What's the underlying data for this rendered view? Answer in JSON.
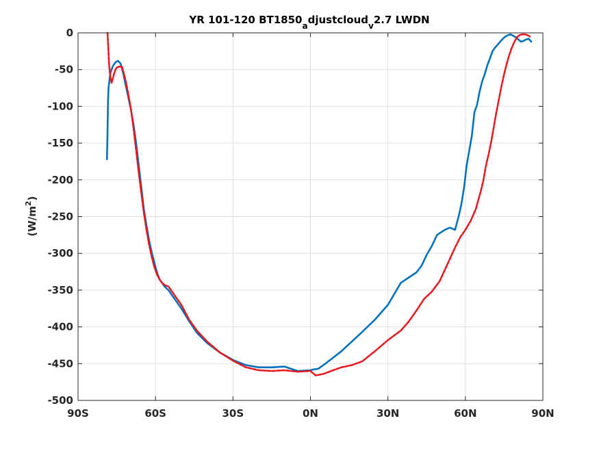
{
  "chart_data": {
    "type": "line",
    "title_parts": {
      "prefix": "YR 101-120 BT1850",
      "sub_a": "a",
      "mid": "djustcloud",
      "sub_v": "v",
      "suffix": "2.7 LWDN"
    },
    "ylabel_parts": {
      "main": "(W/m",
      "sup": "2",
      "close": ")"
    },
    "xlabel": "",
    "xlim": [
      -90,
      90
    ],
    "ylim": [
      -500,
      0
    ],
    "x_ticks": [
      {
        "value": -90,
        "label": "90S"
      },
      {
        "value": -60,
        "label": "60S"
      },
      {
        "value": -30,
        "label": "30S"
      },
      {
        "value": 0,
        "label": "0N"
      },
      {
        "value": 30,
        "label": "30N"
      },
      {
        "value": 60,
        "label": "60N"
      },
      {
        "value": 90,
        "label": "90N"
      }
    ],
    "y_ticks": [
      {
        "value": 0,
        "label": "0"
      },
      {
        "value": -50,
        "label": "-50"
      },
      {
        "value": -100,
        "label": "-100"
      },
      {
        "value": -150,
        "label": "-150"
      },
      {
        "value": -200,
        "label": "-200"
      },
      {
        "value": -250,
        "label": "-250"
      },
      {
        "value": -300,
        "label": "-300"
      },
      {
        "value": -350,
        "label": "-350"
      },
      {
        "value": -400,
        "label": "-400"
      },
      {
        "value": -450,
        "label": "-450"
      },
      {
        "value": -500,
        "label": "-500"
      }
    ],
    "grid": true,
    "series": [
      {
        "color": "#0072BD",
        "style": "solid",
        "x": [
          -78.8,
          -78.6,
          -78.4,
          -78.2,
          -77.5,
          -76.5,
          -75.5,
          -74.5,
          -73.5,
          -72.5,
          -71.5,
          -70.5,
          -69.5,
          -68.5,
          -67.5,
          -66.5,
          -65.5,
          -64.5,
          -63.5,
          -62.5,
          -61.5,
          -60.5,
          -59.5,
          -58.5,
          -57.5,
          -56.5,
          -55,
          -53,
          -50,
          -47,
          -44,
          -40,
          -35,
          -30,
          -25,
          -20,
          -15,
          -10,
          -5,
          0,
          1,
          3,
          5,
          8,
          12,
          16,
          20,
          25,
          30,
          35,
          38,
          41,
          43,
          45,
          47,
          49,
          52,
          54,
          56,
          57.5,
          58.5,
          59.5,
          60.5,
          61.5,
          62.5,
          63.5,
          64.5,
          65.5,
          66.5,
          67.5,
          68.5,
          69.5,
          70.5,
          71.5,
          72.5,
          73.5,
          74.5,
          75.5,
          76.5,
          77.5,
          78.5,
          79.5,
          80.5,
          81.5,
          82.5,
          83.5,
          84.5,
          85.5
        ],
        "values": [
          -172,
          -140,
          -95,
          -75,
          -55,
          -45,
          -40,
          -38,
          -42,
          -55,
          -72,
          -88,
          -105,
          -125,
          -150,
          -180,
          -210,
          -240,
          -262,
          -282,
          -298,
          -312,
          -325,
          -335,
          -340,
          -345,
          -350,
          -360,
          -375,
          -392,
          -408,
          -422,
          -435,
          -445,
          -452,
          -455,
          -455,
          -454,
          -460,
          -459,
          -458,
          -457,
          -452,
          -444,
          -433,
          -420,
          -407,
          -390,
          -370,
          -340,
          -333,
          -326,
          -317,
          -302,
          -290,
          -275,
          -268,
          -265,
          -268,
          -248,
          -232,
          -210,
          -180,
          -160,
          -140,
          -108,
          -98,
          -80,
          -66,
          -56,
          -44,
          -35,
          -25,
          -20,
          -16,
          -12,
          -8,
          -5,
          -3,
          -2,
          -4,
          -6,
          -9,
          -12,
          -11,
          -9,
          -8,
          -12
        ],
        "name": ""
      },
      {
        "color": "#E8181E",
        "style": "dashed",
        "x": [
          -78.6,
          -78.3,
          -78,
          -77.5,
          -77,
          -76.5,
          -76,
          -75.5,
          -75,
          -74,
          -73,
          -72.5,
          -71.5,
          -70.5,
          -69.5,
          -68.5,
          -67.5,
          -66.5,
          -65.5,
          -64.5,
          -63.5,
          -62.5,
          -61.5,
          -60.5,
          -59.5,
          -58.5,
          -57.5,
          -56.5,
          -55,
          -53,
          -50,
          -47,
          -44,
          -40,
          -35,
          -30,
          -25,
          -20,
          -15,
          -10,
          -5,
          0,
          2,
          5,
          8,
          12,
          16,
          20,
          25,
          30,
          35,
          38,
          41,
          44,
          47,
          50,
          53,
          56,
          58,
          60,
          62,
          64,
          66,
          67,
          68,
          69,
          70,
          71,
          72,
          73,
          74,
          75,
          76,
          77,
          78,
          79,
          80,
          81,
          82,
          83,
          84,
          85
        ],
        "values": [
          0,
          -20,
          -42,
          -60,
          -68,
          -62,
          -55,
          -50,
          -47,
          -46,
          -46,
          -52,
          -66,
          -84,
          -104,
          -130,
          -160,
          -190,
          -218,
          -245,
          -268,
          -288,
          -304,
          -318,
          -328,
          -335,
          -340,
          -343,
          -345,
          -355,
          -370,
          -390,
          -405,
          -420,
          -435,
          -446,
          -455,
          -459,
          -460,
          -459,
          -461,
          -460,
          -466,
          -464,
          -460,
          -455,
          -452,
          -447,
          -433,
          -418,
          -405,
          -393,
          -378,
          -362,
          -352,
          -338,
          -315,
          -292,
          -278,
          -268,
          -256,
          -240,
          -215,
          -200,
          -180,
          -165,
          -148,
          -128,
          -108,
          -90,
          -72,
          -56,
          -42,
          -30,
          -20,
          -12,
          -6,
          -3,
          -2,
          -2,
          -3,
          -5
        ],
        "name": ""
      }
    ]
  }
}
